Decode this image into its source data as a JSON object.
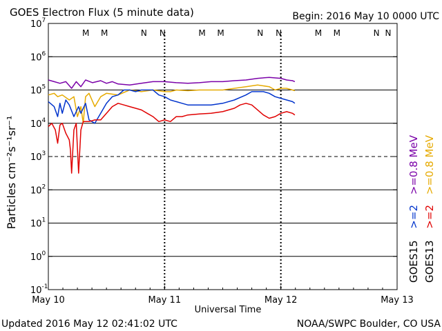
{
  "header": {
    "title": "GOES Electron Flux (5 minute data)",
    "begin": "Begin: 2016 May 10 0000 UTC"
  },
  "footer": {
    "updated": "Updated 2016 May 12 02:41:02 UTC",
    "source": "NOAA/SWPC Boulder, CO USA"
  },
  "legend": {
    "goes13_label": "GOES13",
    "goes15_label": "GOES15",
    "goes13_e08": ">=0.8 MeV",
    "goes13_e2": ">=2",
    "goes15_e08": ">=0.8 MeV",
    "goes15_e2": ">=2"
  },
  "colors": {
    "goes13_e08": "#e6aa00",
    "goes13_e2": "#e00000",
    "goes15_e08": "#7a00a8",
    "goes15_e2": "#0033cc",
    "marker_M_red": "#dd0000",
    "marker_M_blue": "#0044bb"
  },
  "chart_data": {
    "type": "line",
    "title": "GOES Electron Flux (5 minute data)",
    "xlabel": "Universal Time",
    "ylabel": "Particles cm⁻²s⁻¹sr⁻¹",
    "yscale": "log",
    "ylim_exp": [
      -1,
      7
    ],
    "xlim_days": [
      0,
      3
    ],
    "x_ticks": [
      {
        "day": 0,
        "label": "May 10"
      },
      {
        "day": 1,
        "label": "May 11"
      },
      {
        "day": 2,
        "label": "May 12"
      },
      {
        "day": 3,
        "label": "May 13"
      }
    ],
    "y_ticks": [
      {
        "exp": -1,
        "label": "10",
        "sup": "-1"
      },
      {
        "exp": 0,
        "label": "10",
        "sup": "0"
      },
      {
        "exp": 1,
        "label": "10",
        "sup": "1"
      },
      {
        "exp": 2,
        "label": "10",
        "sup": "2"
      },
      {
        "exp": 3,
        "label": "10",
        "sup": "3"
      },
      {
        "exp": 4,
        "label": "10",
        "sup": "4"
      },
      {
        "exp": 5,
        "label": "10",
        "sup": "5"
      },
      {
        "exp": 6,
        "label": "10",
        "sup": "6"
      },
      {
        "exp": 7,
        "label": "10",
        "sup": "7"
      }
    ],
    "alert_threshold_exp": 3,
    "markers": [
      {
        "day": 0.34,
        "label": "M",
        "sat": "GOES13"
      },
      {
        "day": 0.5,
        "label": "M",
        "sat": "GOES15"
      },
      {
        "day": 0.84,
        "label": "N",
        "sat": "GOES13"
      },
      {
        "day": 1.0,
        "label": "N",
        "sat": "GOES15"
      },
      {
        "day": 1.34,
        "label": "M",
        "sat": "GOES13"
      },
      {
        "day": 1.5,
        "label": "M",
        "sat": "GOES15"
      },
      {
        "day": 1.84,
        "label": "N",
        "sat": "GOES13"
      },
      {
        "day": 2.0,
        "label": "N",
        "sat": "GOES15"
      },
      {
        "day": 2.34,
        "label": "M",
        "sat": "GOES13"
      },
      {
        "day": 2.5,
        "label": "M",
        "sat": "GOES15"
      },
      {
        "day": 2.84,
        "label": "N",
        "sat": "GOES13"
      },
      {
        "day": 3.0,
        "label": "N",
        "sat": "GOES15"
      }
    ],
    "series": [
      {
        "name": "GOES15 >=0.8 MeV",
        "key": "goes15_e08",
        "points": [
          [
            0,
            5.3
          ],
          [
            0.05,
            5.25
          ],
          [
            0.1,
            5.2
          ],
          [
            0.15,
            5.25
          ],
          [
            0.2,
            5.05
          ],
          [
            0.24,
            5.25
          ],
          [
            0.28,
            5.1
          ],
          [
            0.32,
            5.3
          ],
          [
            0.38,
            5.22
          ],
          [
            0.45,
            5.28
          ],
          [
            0.5,
            5.2
          ],
          [
            0.55,
            5.25
          ],
          [
            0.6,
            5.18
          ],
          [
            0.7,
            5.15
          ],
          [
            0.8,
            5.2
          ],
          [
            0.9,
            5.25
          ],
          [
            1.0,
            5.25
          ],
          [
            1.1,
            5.22
          ],
          [
            1.2,
            5.2
          ],
          [
            1.3,
            5.22
          ],
          [
            1.4,
            5.25
          ],
          [
            1.5,
            5.25
          ],
          [
            1.6,
            5.28
          ],
          [
            1.7,
            5.3
          ],
          [
            1.8,
            5.35
          ],
          [
            1.9,
            5.38
          ],
          [
            2.0,
            5.35
          ],
          [
            2.05,
            5.3
          ],
          [
            2.1,
            5.28
          ],
          [
            2.12,
            5.25
          ]
        ]
      },
      {
        "name": "GOES13 >=0.8 MeV",
        "key": "goes13_e08",
        "points": [
          [
            0,
            4.85
          ],
          [
            0.05,
            4.9
          ],
          [
            0.08,
            4.8
          ],
          [
            0.12,
            4.85
          ],
          [
            0.18,
            4.7
          ],
          [
            0.22,
            4.8
          ],
          [
            0.25,
            4.2
          ],
          [
            0.28,
            4.5
          ],
          [
            0.3,
            4.0
          ],
          [
            0.32,
            4.8
          ],
          [
            0.35,
            4.9
          ],
          [
            0.4,
            4.5
          ],
          [
            0.45,
            4.8
          ],
          [
            0.5,
            4.9
          ],
          [
            0.6,
            4.85
          ],
          [
            0.7,
            5.0
          ],
          [
            0.8,
            4.95
          ],
          [
            0.9,
            5.0
          ],
          [
            1.0,
            4.95
          ],
          [
            1.05,
            4.95
          ],
          [
            1.1,
            5.0
          ],
          [
            1.2,
            4.98
          ],
          [
            1.3,
            5.0
          ],
          [
            1.4,
            5.0
          ],
          [
            1.5,
            5.0
          ],
          [
            1.6,
            5.05
          ],
          [
            1.7,
            5.1
          ],
          [
            1.8,
            5.15
          ],
          [
            1.9,
            5.1
          ],
          [
            1.95,
            5.0
          ],
          [
            2.0,
            5.05
          ],
          [
            2.05,
            5.05
          ],
          [
            2.1,
            5.0
          ],
          [
            2.12,
            4.98
          ]
        ]
      },
      {
        "name": "GOES15 >=2 MeV",
        "key": "goes15_e2",
        "points": [
          [
            0,
            4.65
          ],
          [
            0.05,
            4.5
          ],
          [
            0.08,
            4.2
          ],
          [
            0.1,
            4.6
          ],
          [
            0.12,
            4.3
          ],
          [
            0.15,
            4.7
          ],
          [
            0.18,
            4.55
          ],
          [
            0.22,
            4.2
          ],
          [
            0.26,
            4.5
          ],
          [
            0.28,
            4.3
          ],
          [
            0.32,
            4.6
          ],
          [
            0.35,
            4.1
          ],
          [
            0.4,
            4.0
          ],
          [
            0.45,
            4.3
          ],
          [
            0.5,
            4.6
          ],
          [
            0.55,
            4.8
          ],
          [
            0.6,
            4.85
          ],
          [
            0.65,
            5.0
          ],
          [
            0.7,
            5.0
          ],
          [
            0.75,
            4.95
          ],
          [
            0.8,
            5.0
          ],
          [
            0.9,
            5.0
          ],
          [
            0.95,
            4.85
          ],
          [
            1.0,
            4.8
          ],
          [
            1.05,
            4.7
          ],
          [
            1.1,
            4.65
          ],
          [
            1.15,
            4.6
          ],
          [
            1.2,
            4.55
          ],
          [
            1.3,
            4.55
          ],
          [
            1.4,
            4.55
          ],
          [
            1.5,
            4.6
          ],
          [
            1.6,
            4.7
          ],
          [
            1.7,
            4.85
          ],
          [
            1.75,
            4.95
          ],
          [
            1.8,
            4.95
          ],
          [
            1.85,
            4.95
          ],
          [
            1.9,
            4.9
          ],
          [
            1.95,
            4.8
          ],
          [
            2.0,
            4.75
          ],
          [
            2.05,
            4.7
          ],
          [
            2.1,
            4.65
          ],
          [
            2.12,
            4.6
          ]
        ]
      },
      {
        "name": "GOES13 >=2 MeV",
        "key": "goes13_e2",
        "points": [
          [
            0,
            3.9
          ],
          [
            0.03,
            4.0
          ],
          [
            0.06,
            3.8
          ],
          [
            0.08,
            3.4
          ],
          [
            0.1,
            3.95
          ],
          [
            0.12,
            4.0
          ],
          [
            0.15,
            3.7
          ],
          [
            0.18,
            3.5
          ],
          [
            0.19,
            3.2
          ],
          [
            0.2,
            2.5
          ],
          [
            0.22,
            3.8
          ],
          [
            0.24,
            4.0
          ],
          [
            0.26,
            2.5
          ],
          [
            0.28,
            3.8
          ],
          [
            0.3,
            4.05
          ],
          [
            0.35,
            4.05
          ],
          [
            0.4,
            4.1
          ],
          [
            0.45,
            4.1
          ],
          [
            0.5,
            4.3
          ],
          [
            0.55,
            4.5
          ],
          [
            0.6,
            4.6
          ],
          [
            0.65,
            4.55
          ],
          [
            0.7,
            4.5
          ],
          [
            0.75,
            4.45
          ],
          [
            0.8,
            4.4
          ],
          [
            0.85,
            4.3
          ],
          [
            0.9,
            4.2
          ],
          [
            0.95,
            4.05
          ],
          [
            1.0,
            4.1
          ],
          [
            1.05,
            4.05
          ],
          [
            1.1,
            4.2
          ],
          [
            1.15,
            4.2
          ],
          [
            1.2,
            4.25
          ],
          [
            1.3,
            4.28
          ],
          [
            1.4,
            4.3
          ],
          [
            1.5,
            4.35
          ],
          [
            1.6,
            4.45
          ],
          [
            1.65,
            4.55
          ],
          [
            1.7,
            4.6
          ],
          [
            1.75,
            4.55
          ],
          [
            1.8,
            4.4
          ],
          [
            1.85,
            4.25
          ],
          [
            1.9,
            4.15
          ],
          [
            1.95,
            4.2
          ],
          [
            2.0,
            4.3
          ],
          [
            2.05,
            4.35
          ],
          [
            2.1,
            4.3
          ],
          [
            2.12,
            4.25
          ]
        ]
      }
    ]
  }
}
